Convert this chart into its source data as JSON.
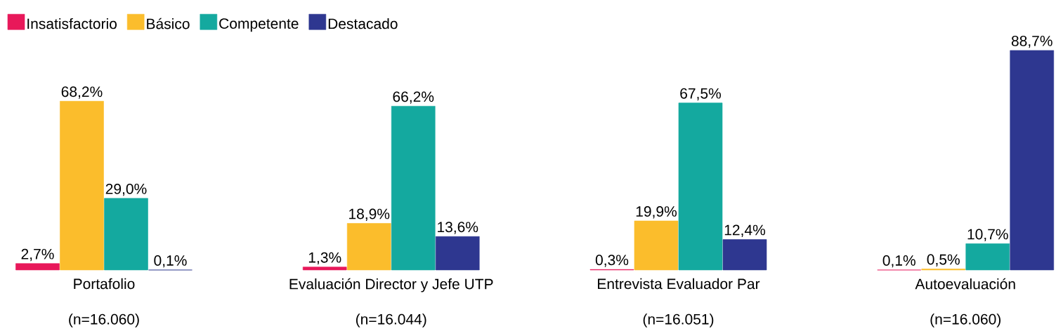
{
  "chart_data": {
    "type": "bar",
    "categories": [
      "Portafolio",
      "Evaluación Director y Jefe UTP",
      "Entrevista Evaluador Par",
      "Autoevaluación"
    ],
    "series": [
      {
        "name": "Insatisfactorio",
        "color": "#e8185a",
        "values": [
          2.7,
          1.3,
          0.3,
          0.1
        ],
        "value_labels": [
          "2,7%",
          "1,3%",
          "0,3%",
          "0,1%"
        ]
      },
      {
        "name": "Básico",
        "color": "#fbbd2c",
        "values": [
          68.2,
          18.9,
          19.9,
          0.5
        ],
        "value_labels": [
          "68,2%",
          "18,9%",
          "19,9%",
          "0,5%"
        ]
      },
      {
        "name": "Competente",
        "color": "#14a99f",
        "values": [
          29.0,
          66.2,
          67.5,
          10.7
        ],
        "value_labels": [
          "29,0%",
          "66,2%",
          "67,5%",
          "10,7%"
        ]
      },
      {
        "name": "Destacado",
        "color": "#2e3790",
        "values": [
          0.1,
          13.6,
          12.4,
          88.7
        ],
        "value_labels": [
          "0,1%",
          "13,6%",
          "12,4%",
          "88,7%"
        ]
      }
    ],
    "annotations": [
      "(n=16.060)",
      "(n=16.044)",
      "(n=16.051)",
      "(n=16.060)"
    ],
    "legend": "top left"
  }
}
